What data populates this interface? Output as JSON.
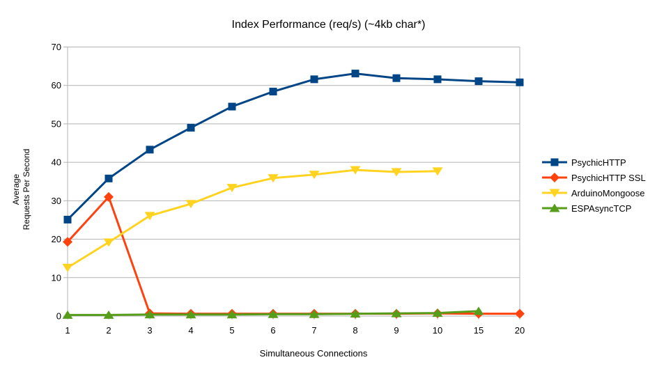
{
  "chart_data": {
    "type": "line",
    "title": "Index Performance (req/s) (~4kb char*)",
    "xlabel": "Simultaneous Connections",
    "ylabel_lines": [
      "Average",
      "Requests Per Second"
    ],
    "categories": [
      "1",
      "2",
      "3",
      "4",
      "5",
      "6",
      "7",
      "8",
      "9",
      "10",
      "15",
      "20"
    ],
    "ylim": [
      0,
      70
    ],
    "ytick_step": 10,
    "grid": true,
    "legend_position": "right",
    "series": [
      {
        "name": "PsychicHTTP",
        "color": "#004586",
        "marker": "square",
        "values": [
          25.1,
          35.8,
          43.3,
          49.0,
          54.5,
          58.4,
          61.6,
          63.1,
          61.9,
          61.6,
          61.1,
          60.8
        ]
      },
      {
        "name": "PsychicHTTP SSL",
        "color": "#FF420E",
        "marker": "diamond",
        "values": [
          19.3,
          31.0,
          0.7,
          0.6,
          0.6,
          0.6,
          0.6,
          0.6,
          0.6,
          0.7,
          0.6,
          0.6
        ]
      },
      {
        "name": "ArduinoMongoose",
        "color": "#FFD320",
        "marker": "triangle-down",
        "values": [
          12.6,
          19.2,
          26.1,
          29.2,
          33.4,
          35.9,
          36.8,
          38.0,
          37.5,
          37.7,
          null,
          null
        ]
      },
      {
        "name": "ESPAsyncTCP",
        "color": "#579D1C",
        "marker": "triangle-up",
        "values": [
          0.3,
          0.3,
          0.4,
          0.4,
          0.4,
          0.5,
          0.5,
          0.6,
          0.7,
          0.8,
          1.3,
          null
        ]
      }
    ]
  },
  "colors": {
    "grid": "#b3b3b3",
    "axis": "#b3b3b3",
    "text": "#000000",
    "background": "#ffffff"
  }
}
